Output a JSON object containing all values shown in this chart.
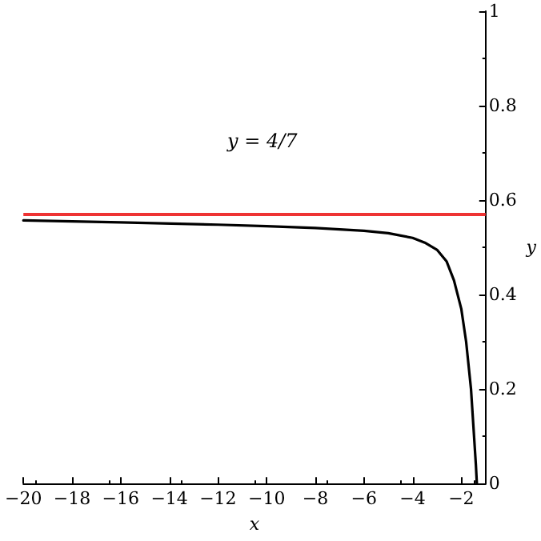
{
  "chart_data": {
    "type": "line",
    "xlabel": "x",
    "ylabel": "y",
    "x": [
      -20,
      -16,
      -12,
      -10,
      -8,
      -6,
      -5,
      -4,
      -3.5,
      -3,
      -2.6,
      -2.3,
      -2,
      -1.8,
      -1.6,
      -1.5,
      -1.4,
      -1.36
    ],
    "series": [
      {
        "color": "#000000",
        "values": [
          0.557,
          0.553,
          0.548,
          0.545,
          0.541,
          0.535,
          0.53,
          0.52,
          0.51,
          0.495,
          0.47,
          0.43,
          0.37,
          0.3,
          0.2,
          0.12,
          0.04,
          0
        ]
      }
    ],
    "xlim": [
      -20,
      -1
    ],
    "xticks": [
      -20,
      -18,
      -16,
      -14,
      -12,
      -10,
      -8,
      -6,
      -4,
      -2
    ],
    "ylim": [
      0,
      1
    ],
    "yticks": [
      0,
      0.2,
      0.4,
      0.6,
      0.8,
      1
    ],
    "ref_lines": [
      {
        "axis": "y",
        "value": 0.5714,
        "color": "#ee3333"
      }
    ],
    "annotations": [
      "y = 4/7"
    ],
    "grid": false,
    "marker": "none",
    "line_style": "solid"
  }
}
